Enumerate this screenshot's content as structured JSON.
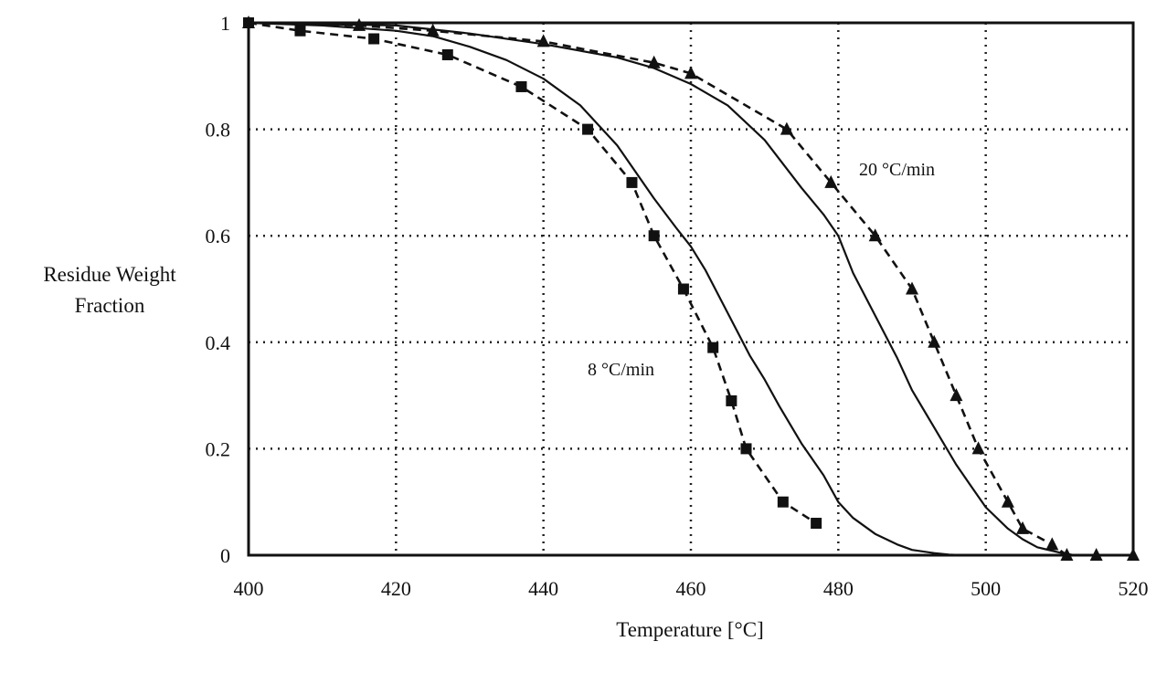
{
  "chart_data": {
    "type": "line",
    "title": "",
    "xlabel": "Temperature [°C]",
    "ylabel": [
      "Residue Weight",
      "Fraction"
    ],
    "xlim": [
      400,
      520
    ],
    "ylim": [
      0,
      1
    ],
    "x_ticks": [
      "400",
      "420",
      "440",
      "460",
      "480",
      "500",
      "520"
    ],
    "y_ticks": [
      "0",
      "0.2",
      "0.4",
      "0.6",
      "0.8",
      "1"
    ],
    "grid": true,
    "annotations": [
      "8 °C/min",
      "20 °C/min"
    ],
    "series": [
      {
        "style": "solid",
        "x": [
          400,
          410,
          420,
          425,
          430,
          435,
          440,
          445,
          450,
          455,
          458,
          460,
          462,
          465,
          468,
          470,
          472,
          475,
          478,
          480,
          482,
          485,
          488,
          490,
          493,
          495,
          497
        ],
        "y": [
          1.0,
          0.995,
          0.985,
          0.975,
          0.955,
          0.93,
          0.895,
          0.845,
          0.77,
          0.67,
          0.615,
          0.58,
          0.535,
          0.455,
          0.375,
          0.33,
          0.28,
          0.21,
          0.15,
          0.1,
          0.07,
          0.04,
          0.02,
          0.01,
          0.004,
          0.001,
          0.0
        ]
      },
      {
        "style": "dashed",
        "marker": "square",
        "x": [
          400,
          407,
          417,
          427,
          437,
          446,
          452,
          455,
          459,
          463,
          465.5,
          467.5,
          472.5,
          477
        ],
        "y": [
          1.0,
          0.985,
          0.97,
          0.94,
          0.88,
          0.8,
          0.7,
          0.6,
          0.5,
          0.39,
          0.29,
          0.2,
          0.1,
          0.06
        ]
      },
      {
        "style": "solid",
        "x": [
          400,
          420,
          430,
          440,
          450,
          455,
          460,
          465,
          470,
          475,
          478,
          480,
          482,
          485,
          488,
          490,
          493,
          496,
          498,
          500,
          503,
          505,
          507,
          510,
          512
        ],
        "y": [
          1.0,
          0.995,
          0.98,
          0.96,
          0.935,
          0.915,
          0.885,
          0.845,
          0.78,
          0.69,
          0.64,
          0.6,
          0.53,
          0.45,
          0.37,
          0.31,
          0.24,
          0.17,
          0.13,
          0.09,
          0.05,
          0.03,
          0.015,
          0.005,
          0.0
        ]
      },
      {
        "style": "dashed",
        "marker": "triangle",
        "x": [
          400,
          415,
          425,
          440,
          455,
          460,
          473,
          479,
          485,
          490,
          493,
          496,
          499,
          503,
          505,
          509,
          511,
          515,
          520
        ],
        "y": [
          1.0,
          0.995,
          0.985,
          0.965,
          0.925,
          0.905,
          0.8,
          0.7,
          0.6,
          0.5,
          0.4,
          0.3,
          0.2,
          0.1,
          0.05,
          0.02,
          0.0,
          0.0,
          0.0
        ]
      }
    ]
  }
}
